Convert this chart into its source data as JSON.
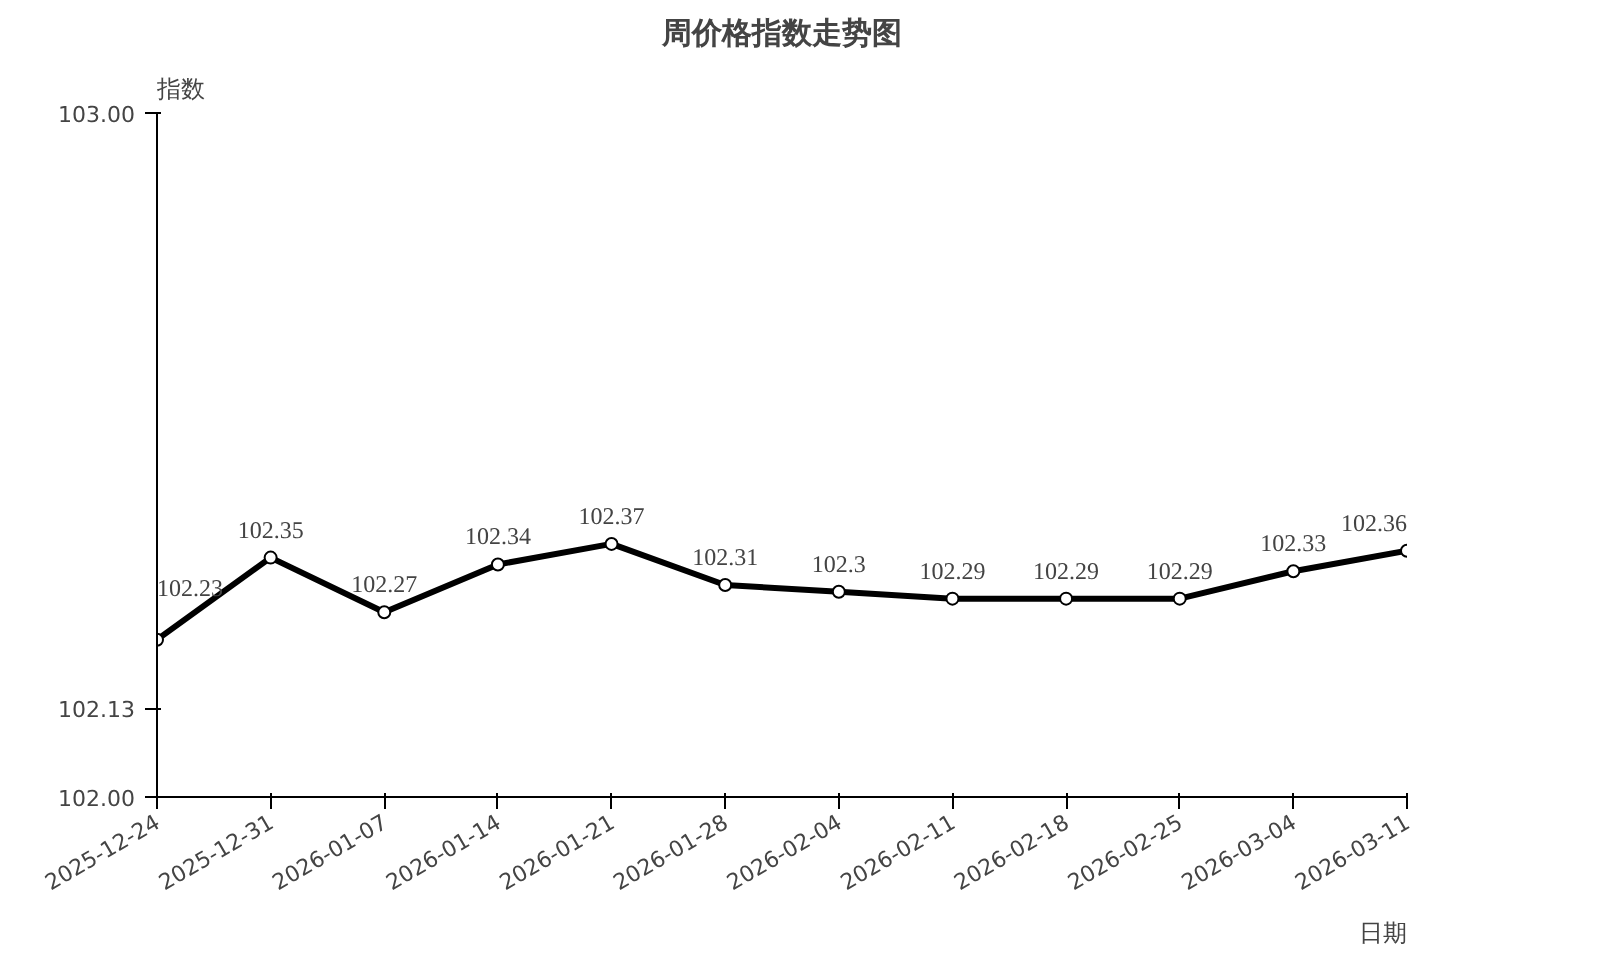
{
  "chart_data": {
    "type": "line",
    "title": "周价格指数走势图",
    "xlabel": "日期",
    "ylabel": "指数",
    "categories": [
      "2025-12-24",
      "2025-12-31",
      "2026-01-07",
      "2026-01-14",
      "2026-01-21",
      "2026-01-28",
      "2026-02-04",
      "2026-02-11",
      "2026-02-18",
      "2026-02-25",
      "2026-03-04",
      "2026-03-11"
    ],
    "series": [
      {
        "color": "#000000",
        "values": [
          102.23,
          102.35,
          102.27,
          102.34,
          102.37,
          102.31,
          102.3,
          102.29,
          102.29,
          102.29,
          102.33,
          102.36
        ]
      }
    ],
    "ylim": [
      102.0,
      103.0
    ],
    "yticks": [
      {
        "value": 102.0,
        "label": "102.00"
      },
      {
        "value": 102.13,
        "label": "102.13"
      },
      {
        "value": 103.0,
        "label": "103.00"
      }
    ],
    "grid": false,
    "marker": "circle",
    "line_style": "solid",
    "data_labels": true
  }
}
